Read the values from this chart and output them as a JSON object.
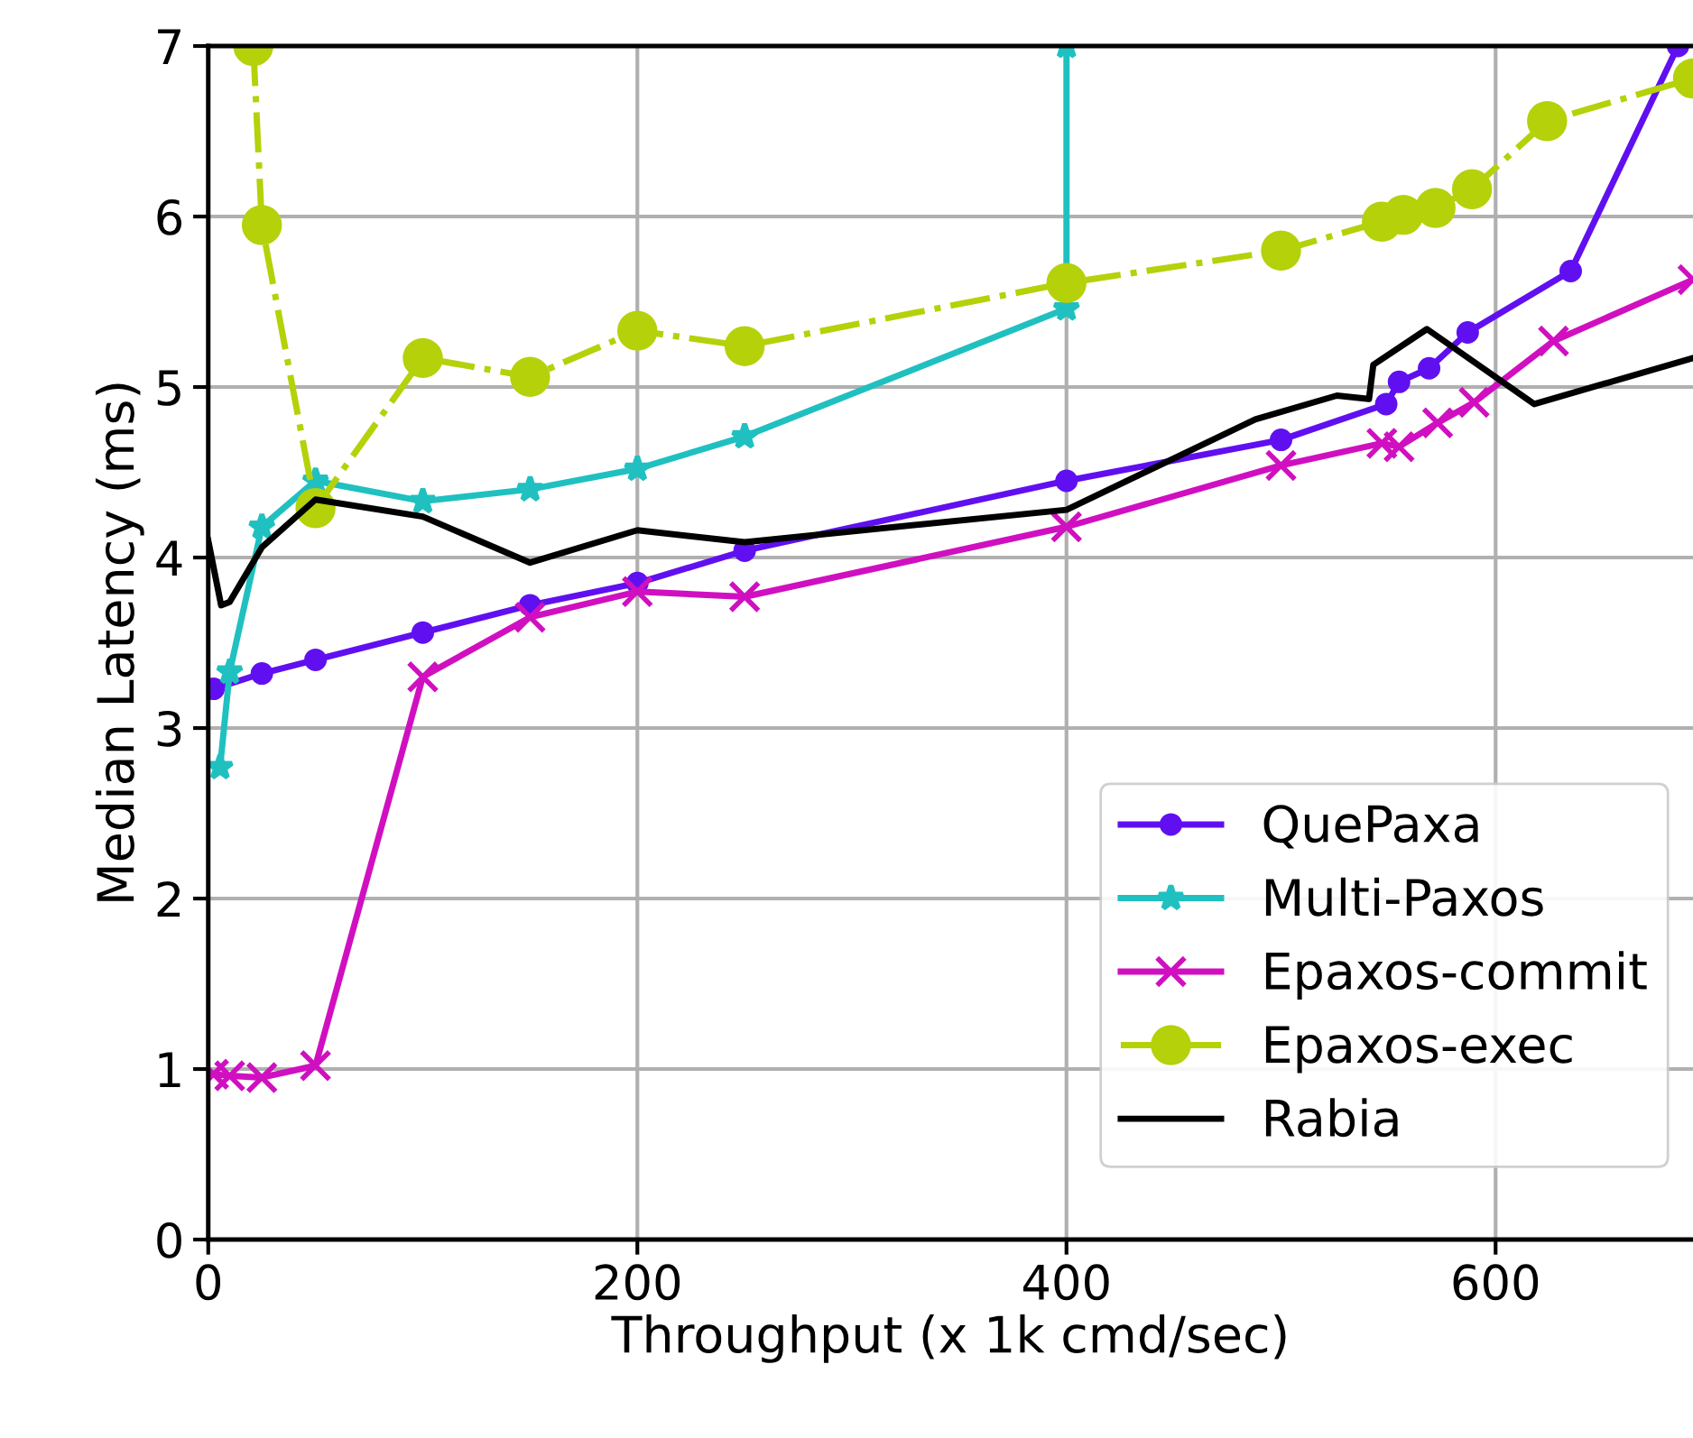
{
  "chart_data": {
    "type": "line",
    "xlabel": "Throughput (x 1k cmd/sec)",
    "ylabel": "Median Latency (ms)",
    "xlim": [
      0,
      692
    ],
    "ylim": [
      0,
      7
    ],
    "xticks": [
      0,
      200,
      400,
      600
    ],
    "yticks": [
      0,
      1,
      2,
      3,
      4,
      5,
      6,
      7
    ],
    "grid": true,
    "legend": "bottom right",
    "series": [
      {
        "name": "QuePaxa",
        "color": "#6010f0",
        "marker": "circle",
        "line_style": "solid",
        "x": [
          2.5,
          25,
          50,
          100,
          150,
          200,
          250,
          400,
          500,
          549,
          555,
          569,
          587,
          635,
          685
        ],
        "values": [
          3.23,
          3.32,
          3.4,
          3.56,
          3.72,
          3.85,
          4.04,
          4.45,
          4.69,
          4.9,
          5.03,
          5.11,
          5.32,
          5.68,
          7.0
        ]
      },
      {
        "name": "Multi-Paxos",
        "color": "#20c0c0",
        "marker": "star",
        "line_style": "solid",
        "x": [
          5.5,
          10,
          25,
          50,
          100,
          150,
          200,
          250,
          400,
          400
        ],
        "values": [
          2.77,
          3.33,
          4.18,
          4.45,
          4.33,
          4.4,
          4.52,
          4.71,
          5.46,
          7.0
        ]
      },
      {
        "name": "Epaxos-commit",
        "color": "#d010c0",
        "marker": "cross",
        "line_style": "solid",
        "x": [
          2.5,
          10,
          25,
          50,
          100,
          150,
          200,
          250,
          400,
          500,
          547,
          555,
          573,
          590,
          627,
          692
        ],
        "values": [
          0.97,
          0.96,
          0.95,
          1.02,
          3.3,
          3.65,
          3.8,
          3.77,
          4.18,
          4.54,
          4.67,
          4.65,
          4.79,
          4.91,
          5.27,
          5.63
        ]
      },
      {
        "name": "Epaxos-exec",
        "color": "#b5d10a",
        "marker": "circle",
        "line_style": "dashdot",
        "x": [
          21,
          25,
          50,
          100,
          150,
          200,
          250,
          400,
          500,
          547,
          557,
          572,
          589,
          624,
          692
        ],
        "values": [
          7.0,
          5.95,
          4.29,
          5.17,
          5.06,
          5.33,
          5.24,
          5.61,
          5.8,
          5.97,
          6.01,
          6.05,
          6.16,
          6.56,
          6.81
        ]
      },
      {
        "name": "Rabia",
        "color": "#000000",
        "marker": "none",
        "line_style": "solid",
        "x": [
          0,
          6,
          10,
          25,
          50,
          100,
          150,
          200,
          250,
          400,
          488,
          526,
          541,
          543,
          568,
          618,
          692
        ],
        "values": [
          4.1,
          3.72,
          3.74,
          4.06,
          4.34,
          4.24,
          3.97,
          4.16,
          4.09,
          4.28,
          4.81,
          4.95,
          4.93,
          5.13,
          5.34,
          4.9,
          5.17
        ]
      }
    ]
  }
}
